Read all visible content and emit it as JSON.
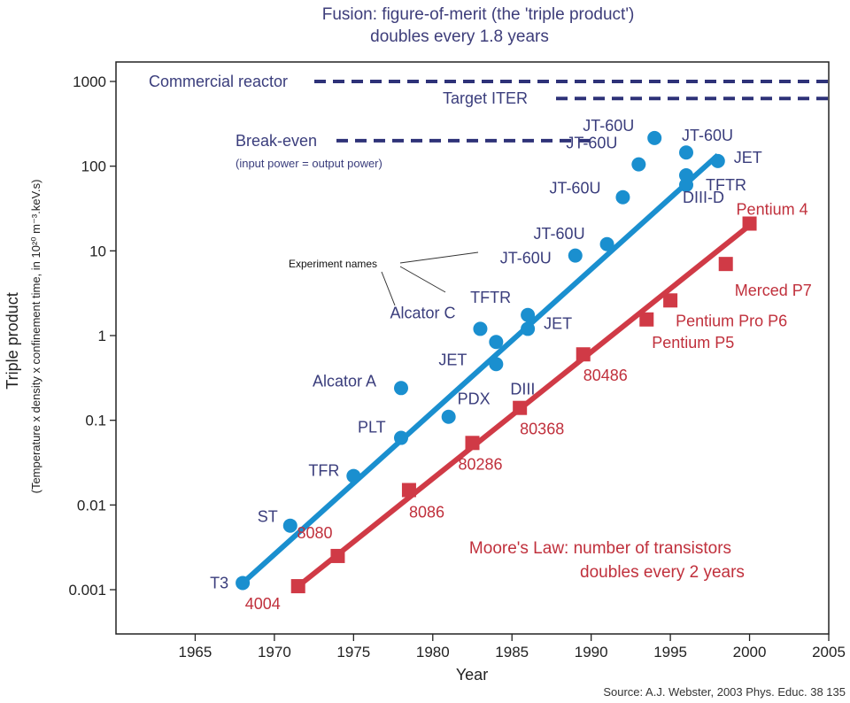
{
  "chart_data": {
    "type": "scatter",
    "title_lines": [
      "Fusion: figure-of-merit (the 'triple product')",
      "doubles every 1.8 years"
    ],
    "xlabel": "Year",
    "ylabel": "Triple product",
    "ylabel_sub": "(Temperature x density x confinement time, in 10²⁰ m⁻³.keV.s)",
    "xlim": [
      1960,
      2005
    ],
    "ylim": [
      0.0005,
      1500
    ],
    "yscale": "log",
    "x_ticks": [
      "1965",
      "1970",
      "1975",
      "1980",
      "1985",
      "1990",
      "1995",
      "2000",
      "2005"
    ],
    "x_tick_values": [
      1965,
      1970,
      1975,
      1980,
      1985,
      1990,
      1995,
      2000,
      2005
    ],
    "y_ticks": [
      "0.001",
      "0.01",
      "0.1",
      "1",
      "10",
      "100",
      "1000"
    ],
    "y_tick_values": [
      0.001,
      0.01,
      0.1,
      1,
      10,
      100,
      1000
    ],
    "grid": false,
    "series": [
      {
        "kind": "fusion",
        "color": "#1a8fcf",
        "fit": {
          "x": [
            1968,
            1998
          ],
          "y": [
            0.0012,
            135
          ]
        },
        "points": [
          {
            "x": 1968,
            "y": 0.0012,
            "label": "T3"
          },
          {
            "x": 1971,
            "y": 0.0057,
            "label": "ST"
          },
          {
            "x": 1975,
            "y": 0.022,
            "label": "TFR"
          },
          {
            "x": 1978,
            "y": 0.062,
            "label": "PLT"
          },
          {
            "x": 1978,
            "y": 0.24,
            "label": "Alcator A"
          },
          {
            "x": 1981,
            "y": 0.11,
            "label": "PDX"
          },
          {
            "x": 1983,
            "y": 1.2,
            "label": "Alcator C"
          },
          {
            "x": 1984,
            "y": 0.84,
            "label": "JET"
          },
          {
            "x": 1984,
            "y": 0.46,
            "label": "DIII"
          },
          {
            "x": 1986,
            "y": 1.75,
            "label": "TFTR"
          },
          {
            "x": 1986,
            "y": 1.2,
            "label": "JET"
          },
          {
            "x": 1989,
            "y": 8.8,
            "label": "JT-60U"
          },
          {
            "x": 1991,
            "y": 12,
            "label": "JT-60U"
          },
          {
            "x": 1992,
            "y": 43,
            "label": "JT-60U"
          },
          {
            "x": 1993,
            "y": 105,
            "label": "JT-60U"
          },
          {
            "x": 1994,
            "y": 215,
            "label": "JT-60U"
          },
          {
            "x": 1996,
            "y": 145,
            "label": "JT-60U"
          },
          {
            "x": 1998,
            "y": 115,
            "label": "JET"
          },
          {
            "x": 1996,
            "y": 78,
            "label": "TFTR"
          },
          {
            "x": 1996,
            "y": 60,
            "label": "DIII-D"
          }
        ]
      },
      {
        "kind": "moore",
        "color": "#d03a46",
        "fit": {
          "x": [
            1971.5,
            2000
          ],
          "y": [
            0.0011,
            20
          ]
        },
        "points": [
          {
            "x": 1971.5,
            "y": 0.0011,
            "label": "4004"
          },
          {
            "x": 1974,
            "y": 0.0025,
            "label": "8080"
          },
          {
            "x": 1978.5,
            "y": 0.015,
            "label": "8086"
          },
          {
            "x": 1982.5,
            "y": 0.054,
            "label": "80286"
          },
          {
            "x": 1985.5,
            "y": 0.14,
            "label": "80368"
          },
          {
            "x": 1989.5,
            "y": 0.6,
            "label": "80486"
          },
          {
            "x": 1993.5,
            "y": 1.55,
            "label": "Pentium P5"
          },
          {
            "x": 1995,
            "y": 2.6,
            "label": "Pentium Pro P6"
          },
          {
            "x": 1998.5,
            "y": 7,
            "label": "Merced P7"
          },
          {
            "x": 2000,
            "y": 21,
            "label": "Pentium 4"
          }
        ]
      }
    ],
    "levels": [
      {
        "label": "Commercial reactor",
        "y": 1000
      },
      {
        "label": "Target ITER",
        "y": 630
      },
      {
        "label": "Break-even",
        "y": 200,
        "note": "(input power = output power)"
      }
    ],
    "annotations": {
      "experiment_names": "Experiment names",
      "moore_law": [
        "Moore's Law: number of transistors",
        "doubles every 2 years"
      ],
      "source": "Source: A.J. Webster, 2003 Phys. Educ. 38 135"
    }
  }
}
